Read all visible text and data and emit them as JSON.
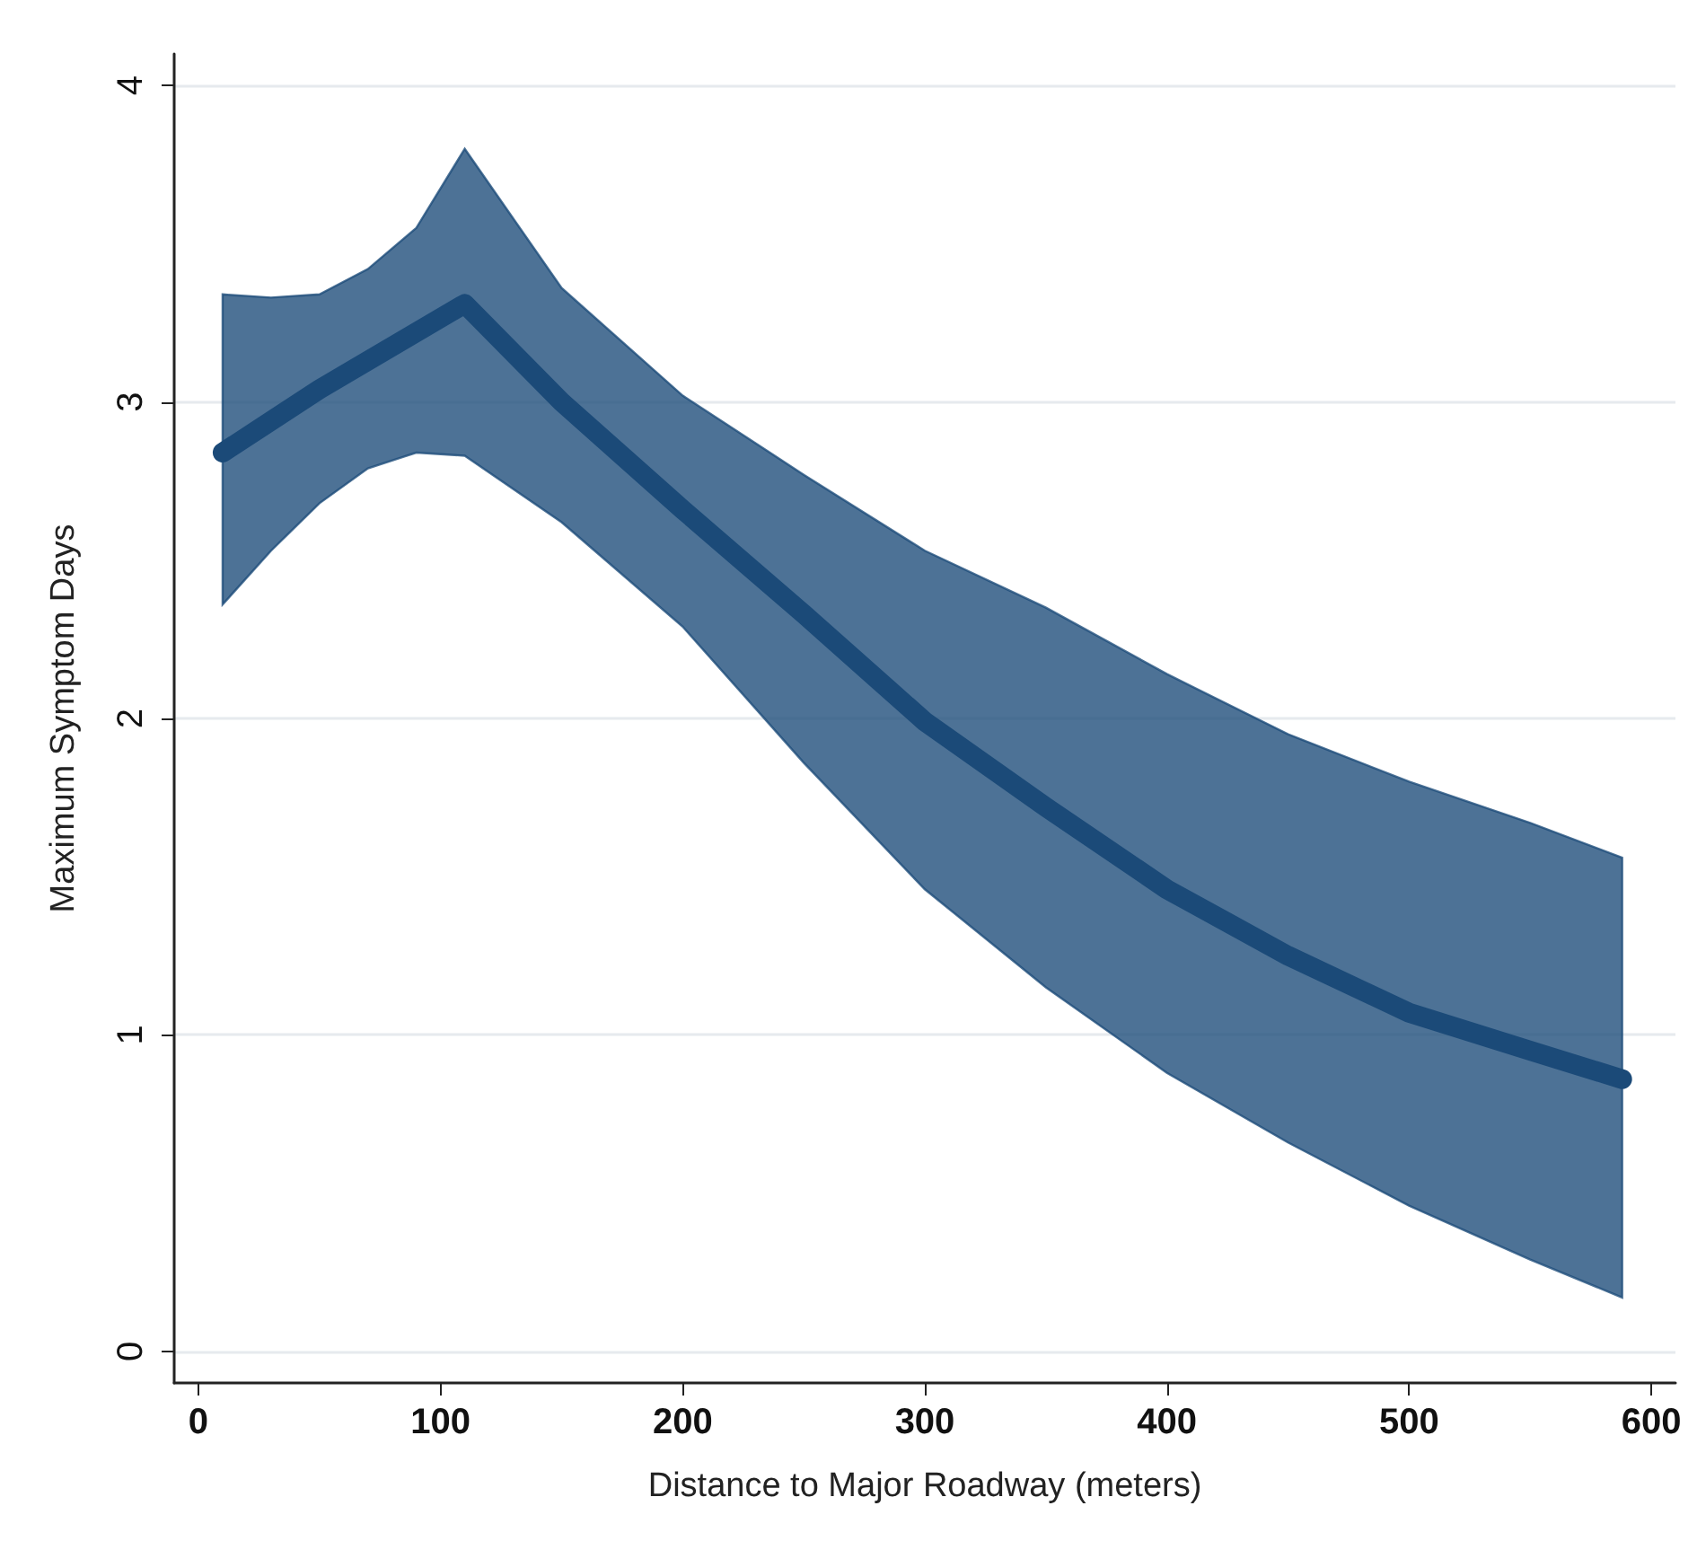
{
  "chart_data": {
    "type": "line",
    "xlabel": "Distance to Major Roadway (meters)",
    "ylabel": "Maximum Symptom Days",
    "x": [
      10,
      30,
      50,
      70,
      90,
      110,
      150,
      200,
      250,
      300,
      350,
      400,
      450,
      500,
      550,
      588
    ],
    "series": [
      {
        "color": "#1b4a78",
        "values": [
          2.84,
          2.94,
          3.04,
          3.13,
          3.22,
          3.31,
          3.0,
          2.66,
          2.33,
          1.99,
          1.72,
          1.46,
          1.25,
          1.07,
          0.95,
          0.86
        ],
        "upper": [
          3.34,
          3.33,
          3.34,
          3.42,
          3.55,
          3.8,
          3.36,
          3.02,
          2.77,
          2.53,
          2.35,
          2.14,
          1.95,
          1.8,
          1.67,
          1.56
        ],
        "lower": [
          2.36,
          2.53,
          2.68,
          2.79,
          2.84,
          2.83,
          2.62,
          2.29,
          1.86,
          1.46,
          1.15,
          0.88,
          0.66,
          0.46,
          0.29,
          0.17
        ]
      }
    ],
    "xlim": [
      -10,
      610
    ],
    "xticks": [
      0,
      100,
      200,
      300,
      400,
      500,
      600
    ],
    "ylim": [
      -0.1,
      4.1
    ],
    "yticks": [
      0,
      1,
      2,
      3,
      4
    ],
    "grid": "y",
    "line_style": "solid"
  }
}
